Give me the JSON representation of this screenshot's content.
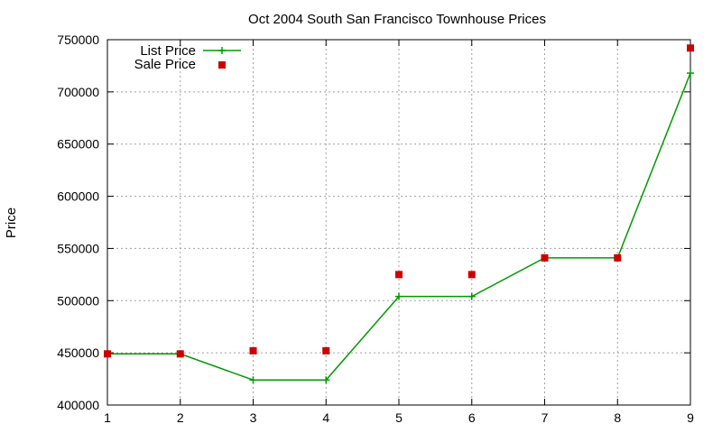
{
  "chart_data": {
    "type": "line",
    "title": "Oct 2004 South San Francisco Townhouse Prices",
    "xlabel": "",
    "ylabel": "Price",
    "x": [
      1,
      2,
      3,
      4,
      5,
      6,
      7,
      8,
      9
    ],
    "xlim": [
      1,
      9
    ],
    "ylim": [
      400000,
      750000
    ],
    "x_ticks": [
      "1",
      "2",
      "3",
      "4",
      "5",
      "6",
      "7",
      "8",
      "9"
    ],
    "y_ticks": [
      "400000",
      "450000",
      "500000",
      "550000",
      "600000",
      "650000",
      "700000",
      "750000"
    ],
    "grid": true,
    "legend_position": "top-left",
    "series": [
      {
        "name": "List Price",
        "style": "lines+points",
        "marker": "plus",
        "color": "#009900",
        "values": [
          449000,
          449000,
          424000,
          424000,
          504000,
          504000,
          541000,
          541000,
          718000
        ]
      },
      {
        "name": "Sale Price",
        "style": "points",
        "marker": "square",
        "color": "#cc0000",
        "values": [
          449000,
          449000,
          452000,
          452000,
          525000,
          525000,
          541000,
          541000,
          742000
        ]
      }
    ]
  }
}
